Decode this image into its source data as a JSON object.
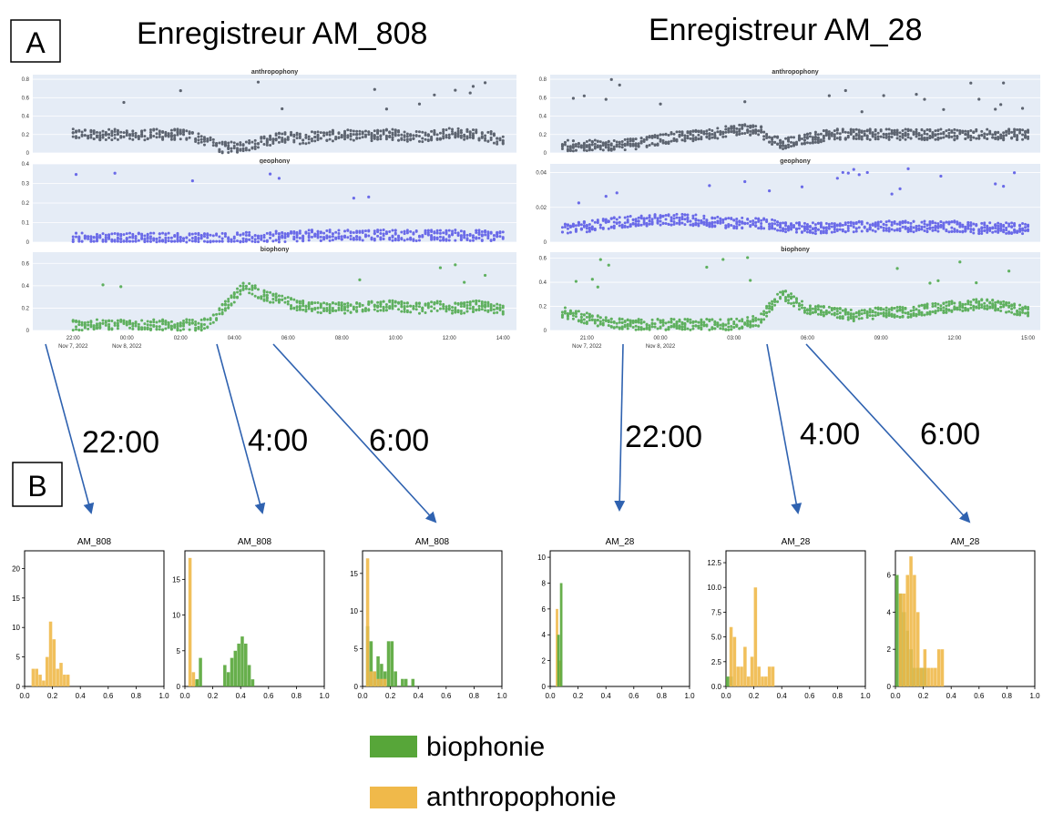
{
  "figure": {
    "panel_a_label": "A",
    "panel_b_label": "B",
    "recorder_left_title": "Enregistreur AM_808",
    "recorder_right_title": "Enregistreur AM_28"
  },
  "colors": {
    "anthropophony_dot": "#5d6470",
    "geophony_dot": "#6a6ae8",
    "biophony_dot": "#5fb05f",
    "plotly_bg": "#e5ecf6",
    "hist_bio": "#57a639",
    "hist_anthro": "#f0b94a",
    "arrow": "#2f62b0"
  },
  "chart_data": [
    {
      "type": "scatter",
      "recorder": "AM_808",
      "subplot_titles": [
        "anthropophony",
        "geophony",
        "biophony"
      ],
      "x_ticks": [
        "22:00",
        "00:00",
        "02:00",
        "04:00",
        "06:00",
        "08:00",
        "10:00",
        "12:00",
        "14:00"
      ],
      "x_ticks_sub": [
        "Nov 7, 2022",
        "Nov 8, 2022"
      ],
      "x_range_hours": [
        20.5,
        38.5
      ],
      "series": [
        {
          "name": "anthropophony",
          "yticks": [
            "0",
            "0.2",
            "0.4",
            "0.6",
            "0.8"
          ],
          "ylim": [
            0,
            0.85
          ],
          "x": [
            22.0,
            22.2,
            22.5,
            23.0,
            23.5,
            24.0,
            24.5,
            25.0,
            25.5,
            26.0,
            26.5,
            27.0,
            27.5,
            28.0,
            28.5,
            29.0,
            29.5,
            30.0,
            30.5,
            31.0,
            31.5,
            32.0,
            32.5,
            33.0,
            33.5,
            34.0,
            34.5,
            35.0,
            35.5,
            36.0,
            36.5,
            37.0,
            37.5,
            38.0
          ],
          "y": [
            0.2,
            0.2,
            0.2,
            0.2,
            0.2,
            0.18,
            0.2,
            0.2,
            0.2,
            0.2,
            0.18,
            0.12,
            0.06,
            0.06,
            0.08,
            0.12,
            0.15,
            0.18,
            0.15,
            0.18,
            0.18,
            0.2,
            0.18,
            0.18,
            0.2,
            0.2,
            0.18,
            0.18,
            0.2,
            0.22,
            0.2,
            0.2,
            0.18,
            0.12
          ]
        },
        {
          "name": "geophony",
          "yticks": [
            "0",
            "0.1",
            "0.2",
            "0.3",
            "0.4"
          ],
          "ylim": [
            0,
            0.4
          ],
          "x": [
            22.0,
            23.0,
            24.0,
            25.0,
            26.0,
            27.0,
            28.0,
            29.0,
            30.0,
            31.0,
            32.0,
            33.0,
            34.0,
            35.0,
            36.0,
            37.0,
            38.0
          ],
          "y": [
            0.02,
            0.02,
            0.02,
            0.02,
            0.02,
            0.02,
            0.02,
            0.025,
            0.03,
            0.035,
            0.035,
            0.035,
            0.035,
            0.035,
            0.035,
            0.035,
            0.03
          ]
        },
        {
          "name": "biophony",
          "yticks": [
            "0",
            "0.2",
            "0.4",
            "0.6"
          ],
          "ylim": [
            0,
            0.7
          ],
          "x": [
            22.0,
            23.0,
            24.0,
            25.0,
            26.0,
            26.8,
            27.2,
            27.6,
            28.0,
            28.4,
            28.8,
            29.2,
            29.6,
            30.0,
            30.5,
            31.0,
            31.5,
            32.0,
            32.5,
            33.0,
            33.5,
            34.0,
            34.5,
            35.0,
            35.5,
            36.0,
            36.5,
            37.0,
            37.5,
            38.0
          ],
          "y": [
            0.05,
            0.05,
            0.05,
            0.05,
            0.05,
            0.05,
            0.1,
            0.2,
            0.3,
            0.4,
            0.35,
            0.3,
            0.28,
            0.25,
            0.22,
            0.2,
            0.2,
            0.2,
            0.2,
            0.22,
            0.22,
            0.22,
            0.2,
            0.2,
            0.22,
            0.2,
            0.2,
            0.22,
            0.2,
            0.18
          ]
        }
      ]
    },
    {
      "type": "scatter",
      "recorder": "AM_28",
      "subplot_titles": [
        "anthropophony",
        "geophony",
        "biophony"
      ],
      "x_ticks": [
        "21:00",
        "00:00",
        "03:00",
        "06:00",
        "09:00",
        "12:00",
        "15:00"
      ],
      "x_ticks_sub": [
        "Nov 7, 2022",
        "Nov 8, 2022"
      ],
      "x_range_hours": [
        19.5,
        39.5
      ],
      "series": [
        {
          "name": "anthropophony",
          "yticks": [
            "0",
            "0.2",
            "0.4",
            "0.6",
            "0.8"
          ],
          "ylim": [
            0,
            0.85
          ],
          "x": [
            20.0,
            21.0,
            22.0,
            23.0,
            24.0,
            25.0,
            26.0,
            27.0,
            28.0,
            28.5,
            29.0,
            30.0,
            31.0,
            32.0,
            33.0,
            34.0,
            35.0,
            36.0,
            37.0,
            38.0,
            39.0
          ],
          "y": [
            0.08,
            0.08,
            0.08,
            0.1,
            0.15,
            0.18,
            0.2,
            0.25,
            0.25,
            0.15,
            0.1,
            0.15,
            0.2,
            0.2,
            0.2,
            0.2,
            0.2,
            0.2,
            0.2,
            0.2,
            0.2
          ]
        },
        {
          "name": "geophony",
          "yticks": [
            "0",
            "0.02",
            "0.04"
          ],
          "ylim": [
            0,
            0.045
          ],
          "x": [
            20.0,
            21.0,
            22.0,
            23.0,
            24.0,
            25.0,
            26.0,
            27.0,
            28.0,
            29.0,
            30.0,
            31.0,
            32.0,
            33.0,
            34.0,
            35.0,
            36.0,
            37.0,
            38.0,
            39.0
          ],
          "y": [
            0.008,
            0.009,
            0.011,
            0.012,
            0.013,
            0.013,
            0.012,
            0.011,
            0.011,
            0.009,
            0.008,
            0.008,
            0.009,
            0.009,
            0.009,
            0.009,
            0.009,
            0.008,
            0.008,
            0.008
          ]
        },
        {
          "name": "biophony",
          "yticks": [
            "0",
            "0.2",
            "0.4",
            "0.6"
          ],
          "ylim": [
            0,
            0.65
          ],
          "x": [
            20.0,
            21.0,
            22.0,
            23.0,
            24.0,
            25.0,
            26.0,
            27.0,
            28.0,
            28.5,
            29.0,
            30.0,
            31.0,
            32.0,
            33.0,
            34.0,
            35.0,
            36.0,
            37.0,
            38.0,
            39.0
          ],
          "y": [
            0.15,
            0.1,
            0.06,
            0.05,
            0.05,
            0.05,
            0.05,
            0.05,
            0.08,
            0.2,
            0.3,
            0.18,
            0.15,
            0.12,
            0.15,
            0.15,
            0.18,
            0.2,
            0.22,
            0.2,
            0.15
          ]
        }
      ]
    },
    {
      "type": "bar",
      "title": "AM_808",
      "time_label": "22:00",
      "xlim": [
        0,
        1
      ],
      "xticks": [
        "0.0",
        "0.2",
        "0.4",
        "0.6",
        "0.8",
        "1.0"
      ],
      "ylim": [
        0,
        23
      ],
      "yticks": [
        "0",
        "5",
        "10",
        "15",
        "20"
      ],
      "bin_width": 0.025,
      "series": [
        {
          "name": "anthropophonie",
          "x": [
            0.05,
            0.075,
            0.1,
            0.125,
            0.15,
            0.175,
            0.2,
            0.225,
            0.25,
            0.275,
            0.3
          ],
          "values": [
            3,
            3,
            2,
            1,
            5,
            11,
            8,
            3,
            4,
            2,
            2
          ]
        },
        {
          "name": "biophonie",
          "x": [],
          "values": []
        }
      ]
    },
    {
      "type": "bar",
      "title": "AM_808",
      "time_label": "4:00",
      "xlim": [
        0,
        1
      ],
      "xticks": [
        "0.0",
        "0.2",
        "0.4",
        "0.6",
        "0.8",
        "1.0"
      ],
      "ylim": [
        0,
        19
      ],
      "yticks": [
        "0",
        "5",
        "10",
        "15"
      ],
      "bin_width": 0.025,
      "series": [
        {
          "name": "anthropophonie",
          "x": [
            0.025,
            0.05,
            0.075
          ],
          "values": [
            18,
            2,
            1
          ]
        },
        {
          "name": "biophonie",
          "x": [
            0.075,
            0.1,
            0.275,
            0.3,
            0.325,
            0.35,
            0.375,
            0.4,
            0.425,
            0.45,
            0.475
          ],
          "values": [
            1,
            4,
            3,
            2,
            4,
            5,
            6,
            7,
            6,
            3,
            1
          ]
        }
      ]
    },
    {
      "type": "bar",
      "title": "AM_808",
      "time_label": "6:00",
      "xlim": [
        0,
        1
      ],
      "xticks": [
        "0.0",
        "0.2",
        "0.4",
        "0.6",
        "0.8",
        "1.0"
      ],
      "ylim": [
        0,
        18
      ],
      "yticks": [
        "0",
        "5",
        "10",
        "15"
      ],
      "bin_width": 0.025,
      "series": [
        {
          "name": "biophonie",
          "x": [
            0.025,
            0.05,
            0.075,
            0.1,
            0.125,
            0.15,
            0.175,
            0.2,
            0.225,
            0.275,
            0.3,
            0.35
          ],
          "values": [
            8,
            6,
            2,
            4,
            3,
            2,
            6,
            6,
            2,
            1,
            1,
            1
          ]
        },
        {
          "name": "anthropophonie",
          "x": [
            0.025,
            0.05,
            0.075,
            0.1,
            0.125,
            0.15
          ],
          "values": [
            17,
            2,
            2,
            1,
            1,
            1
          ]
        }
      ]
    },
    {
      "type": "bar",
      "title": "AM_28",
      "time_label": "22:00",
      "xlim": [
        0,
        1
      ],
      "xticks": [
        "0.0",
        "0.2",
        "0.4",
        "0.6",
        "0.8",
        "1.0"
      ],
      "ylim": [
        0,
        10.5
      ],
      "yticks": [
        "0",
        "2",
        "4",
        "6",
        "8",
        "10"
      ],
      "bin_width": 0.02,
      "series": [
        {
          "name": "anthropophonie",
          "x": [
            0.04,
            0.06
          ],
          "values": [
            6,
            2
          ]
        },
        {
          "name": "biophonie",
          "x": [
            0.05,
            0.07
          ],
          "values": [
            4,
            8
          ]
        }
      ]
    },
    {
      "type": "bar",
      "title": "AM_28",
      "time_label": "4:00",
      "xlim": [
        0,
        1
      ],
      "xticks": [
        "0.0",
        "0.2",
        "0.4",
        "0.6",
        "0.8",
        "1.0"
      ],
      "ylim": [
        0,
        13.7
      ],
      "yticks": [
        "0.0",
        "2.5",
        "5.0",
        "7.5",
        "10.0",
        "12.5"
      ],
      "bin_width": 0.025,
      "series": [
        {
          "name": "biophonie",
          "x": [
            0.0,
            0.025
          ],
          "values": [
            1,
            1
          ]
        },
        {
          "name": "anthropophonie",
          "x": [
            0.025,
            0.05,
            0.075,
            0.1,
            0.125,
            0.15,
            0.175,
            0.2,
            0.225,
            0.25,
            0.275,
            0.3,
            0.325
          ],
          "values": [
            6,
            5,
            2,
            2,
            4,
            1,
            3,
            10,
            2,
            1,
            1,
            2,
            2
          ]
        }
      ]
    },
    {
      "type": "bar",
      "title": "AM_28",
      "time_label": "6:00",
      "xlim": [
        0,
        1
      ],
      "xticks": [
        "0.0",
        "0.2",
        "0.4",
        "0.6",
        "0.8",
        "1.0"
      ],
      "ylim": [
        0,
        7.3
      ],
      "yticks": [
        "0",
        "2",
        "4",
        "6"
      ],
      "bin_width": 0.025,
      "series": [
        {
          "name": "biophonie",
          "x": [
            0.0,
            0.025,
            0.05,
            0.075,
            0.1,
            0.125,
            0.15,
            0.175,
            0.2
          ],
          "values": [
            6,
            5,
            4,
            3,
            2,
            1,
            1,
            1,
            1
          ]
        },
        {
          "name": "anthropophonie",
          "x": [
            0.025,
            0.05,
            0.075,
            0.1,
            0.125,
            0.15,
            0.175,
            0.2,
            0.225,
            0.25,
            0.275,
            0.3,
            0.325
          ],
          "values": [
            5,
            5,
            6,
            7,
            6,
            4,
            1,
            2,
            1,
            1,
            1,
            2,
            2
          ]
        }
      ]
    }
  ],
  "legend": {
    "items": [
      {
        "label": "biophonie",
        "color": "#57a639"
      },
      {
        "label": "anthropophonie",
        "color": "#f0b94a"
      }
    ]
  }
}
